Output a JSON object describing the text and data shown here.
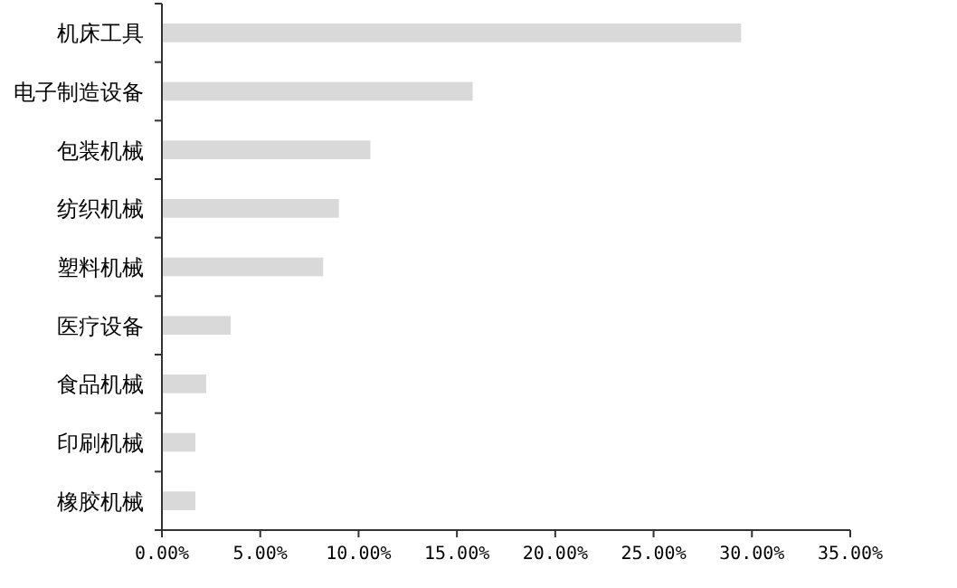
{
  "chart_data": {
    "type": "bar",
    "orientation": "horizontal",
    "categories": [
      "机床工具",
      "电子制造设备",
      "包装机械",
      "纺织机械",
      "塑料机械",
      "医疗设备",
      "食品机械",
      "印刷机械",
      "橡胶机械"
    ],
    "values": [
      29.45,
      15.8,
      10.6,
      9.0,
      8.2,
      3.5,
      2.25,
      1.7,
      1.7
    ],
    "color": "#d9d9d9",
    "xlim": [
      0,
      35
    ],
    "xticks": [
      {
        "value": 0,
        "label": "0.00%"
      },
      {
        "value": 5,
        "label": "5.00%"
      },
      {
        "value": 10,
        "label": "10.00%"
      },
      {
        "value": 15,
        "label": "15.00%"
      },
      {
        "value": 20,
        "label": "20.00%"
      },
      {
        "value": 25,
        "label": "25.00%"
      },
      {
        "value": 30,
        "label": "30.00%"
      },
      {
        "value": 35,
        "label": "35.00%"
      }
    ]
  }
}
